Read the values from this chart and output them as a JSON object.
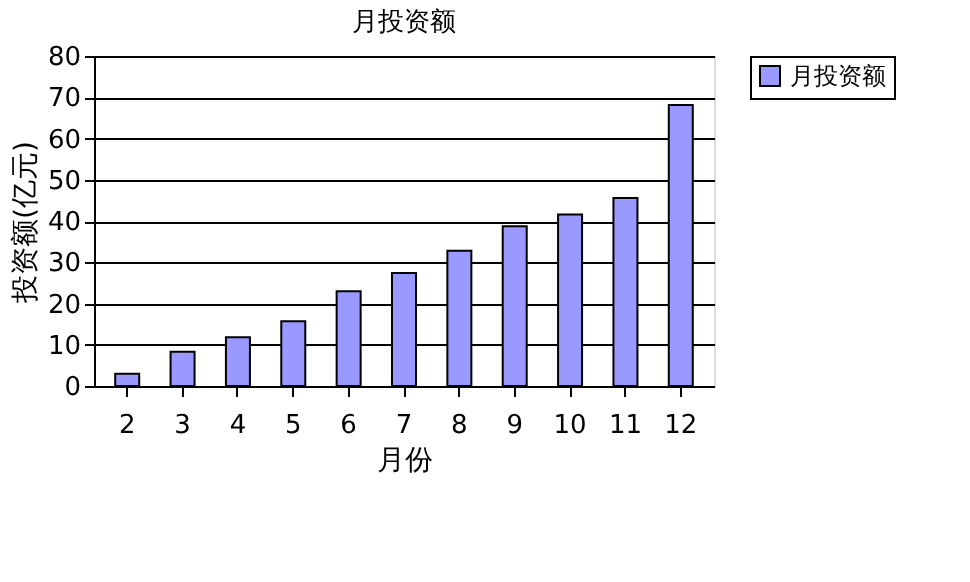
{
  "chart_data": {
    "type": "bar",
    "title": "月投资额",
    "xlabel": "月份",
    "ylabel": "投资额(亿元)",
    "categories": [
      "2",
      "3",
      "4",
      "5",
      "6",
      "7",
      "8",
      "9",
      "10",
      "11",
      "12"
    ],
    "series": [
      {
        "name": "月投资额",
        "color": "#9999ff",
        "values": [
          3,
          8.3,
          11.8,
          15.7,
          23,
          27.4,
          32.8,
          38.7,
          41.6,
          45.6,
          68.1
        ]
      }
    ],
    "ylim": [
      0,
      80
    ],
    "yticks": [
      0,
      10,
      20,
      30,
      40,
      50,
      60,
      70,
      80
    ],
    "grid": "y",
    "legend": "right"
  }
}
